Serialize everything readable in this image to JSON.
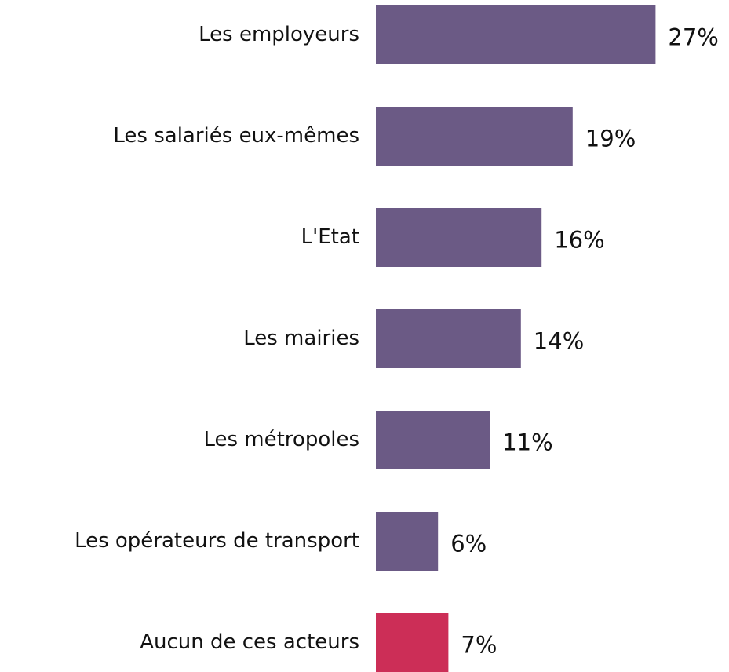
{
  "chart_data": {
    "type": "bar",
    "orientation": "horizontal",
    "categories": [
      "Les employeurs",
      "Les salariés eux-mêmes",
      "L'Etat",
      "Les mairies",
      "Les métropoles",
      "Les opérateurs de transport",
      "Aucun de ces acteurs"
    ],
    "values": [
      27,
      19,
      16,
      14,
      11,
      6,
      7
    ],
    "value_labels": [
      "27%",
      "19%",
      "16%",
      "14%",
      "11%",
      "6%",
      "7%"
    ],
    "colors": [
      "#6b5a85",
      "#6b5a85",
      "#6b5a85",
      "#6b5a85",
      "#6b5a85",
      "#6b5a85",
      "#cc2e57"
    ]
  }
}
